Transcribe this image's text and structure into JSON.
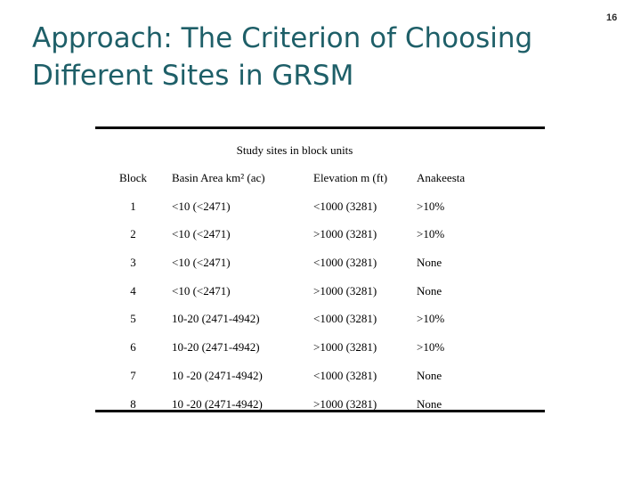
{
  "slide": {
    "title_line1": "Approach: The Criterion of Choosing",
    "title_line2": "Different Sites in GRSM",
    "number": "16"
  },
  "table": {
    "caption": "Study sites in block units",
    "headers": [
      "Block",
      "Basin Area km² (ac)",
      "Elevation m (ft)",
      "Anakeesta"
    ],
    "rows": [
      [
        "1",
        "<10 (<2471)",
        "<1000 (3281)",
        ">10%"
      ],
      [
        "2",
        "<10 (<2471)",
        ">1000 (3281)",
        ">10%"
      ],
      [
        "3",
        "<10 (<2471)",
        "<1000 (3281)",
        "None"
      ],
      [
        "4",
        "<10 (<2471)",
        ">1000 (3281)",
        "None"
      ],
      [
        "5",
        "10-20 (2471-4942)",
        "<1000 (3281)",
        ">10%"
      ],
      [
        "6",
        "10-20 (2471-4942)",
        ">1000 (3281)",
        ">10%"
      ],
      [
        "7",
        "10 -20 (2471-4942)",
        "<1000 (3281)",
        "None"
      ],
      [
        "8",
        "10 -20 (2471-4942)",
        ">1000 (3281)",
        "None"
      ]
    ]
  }
}
